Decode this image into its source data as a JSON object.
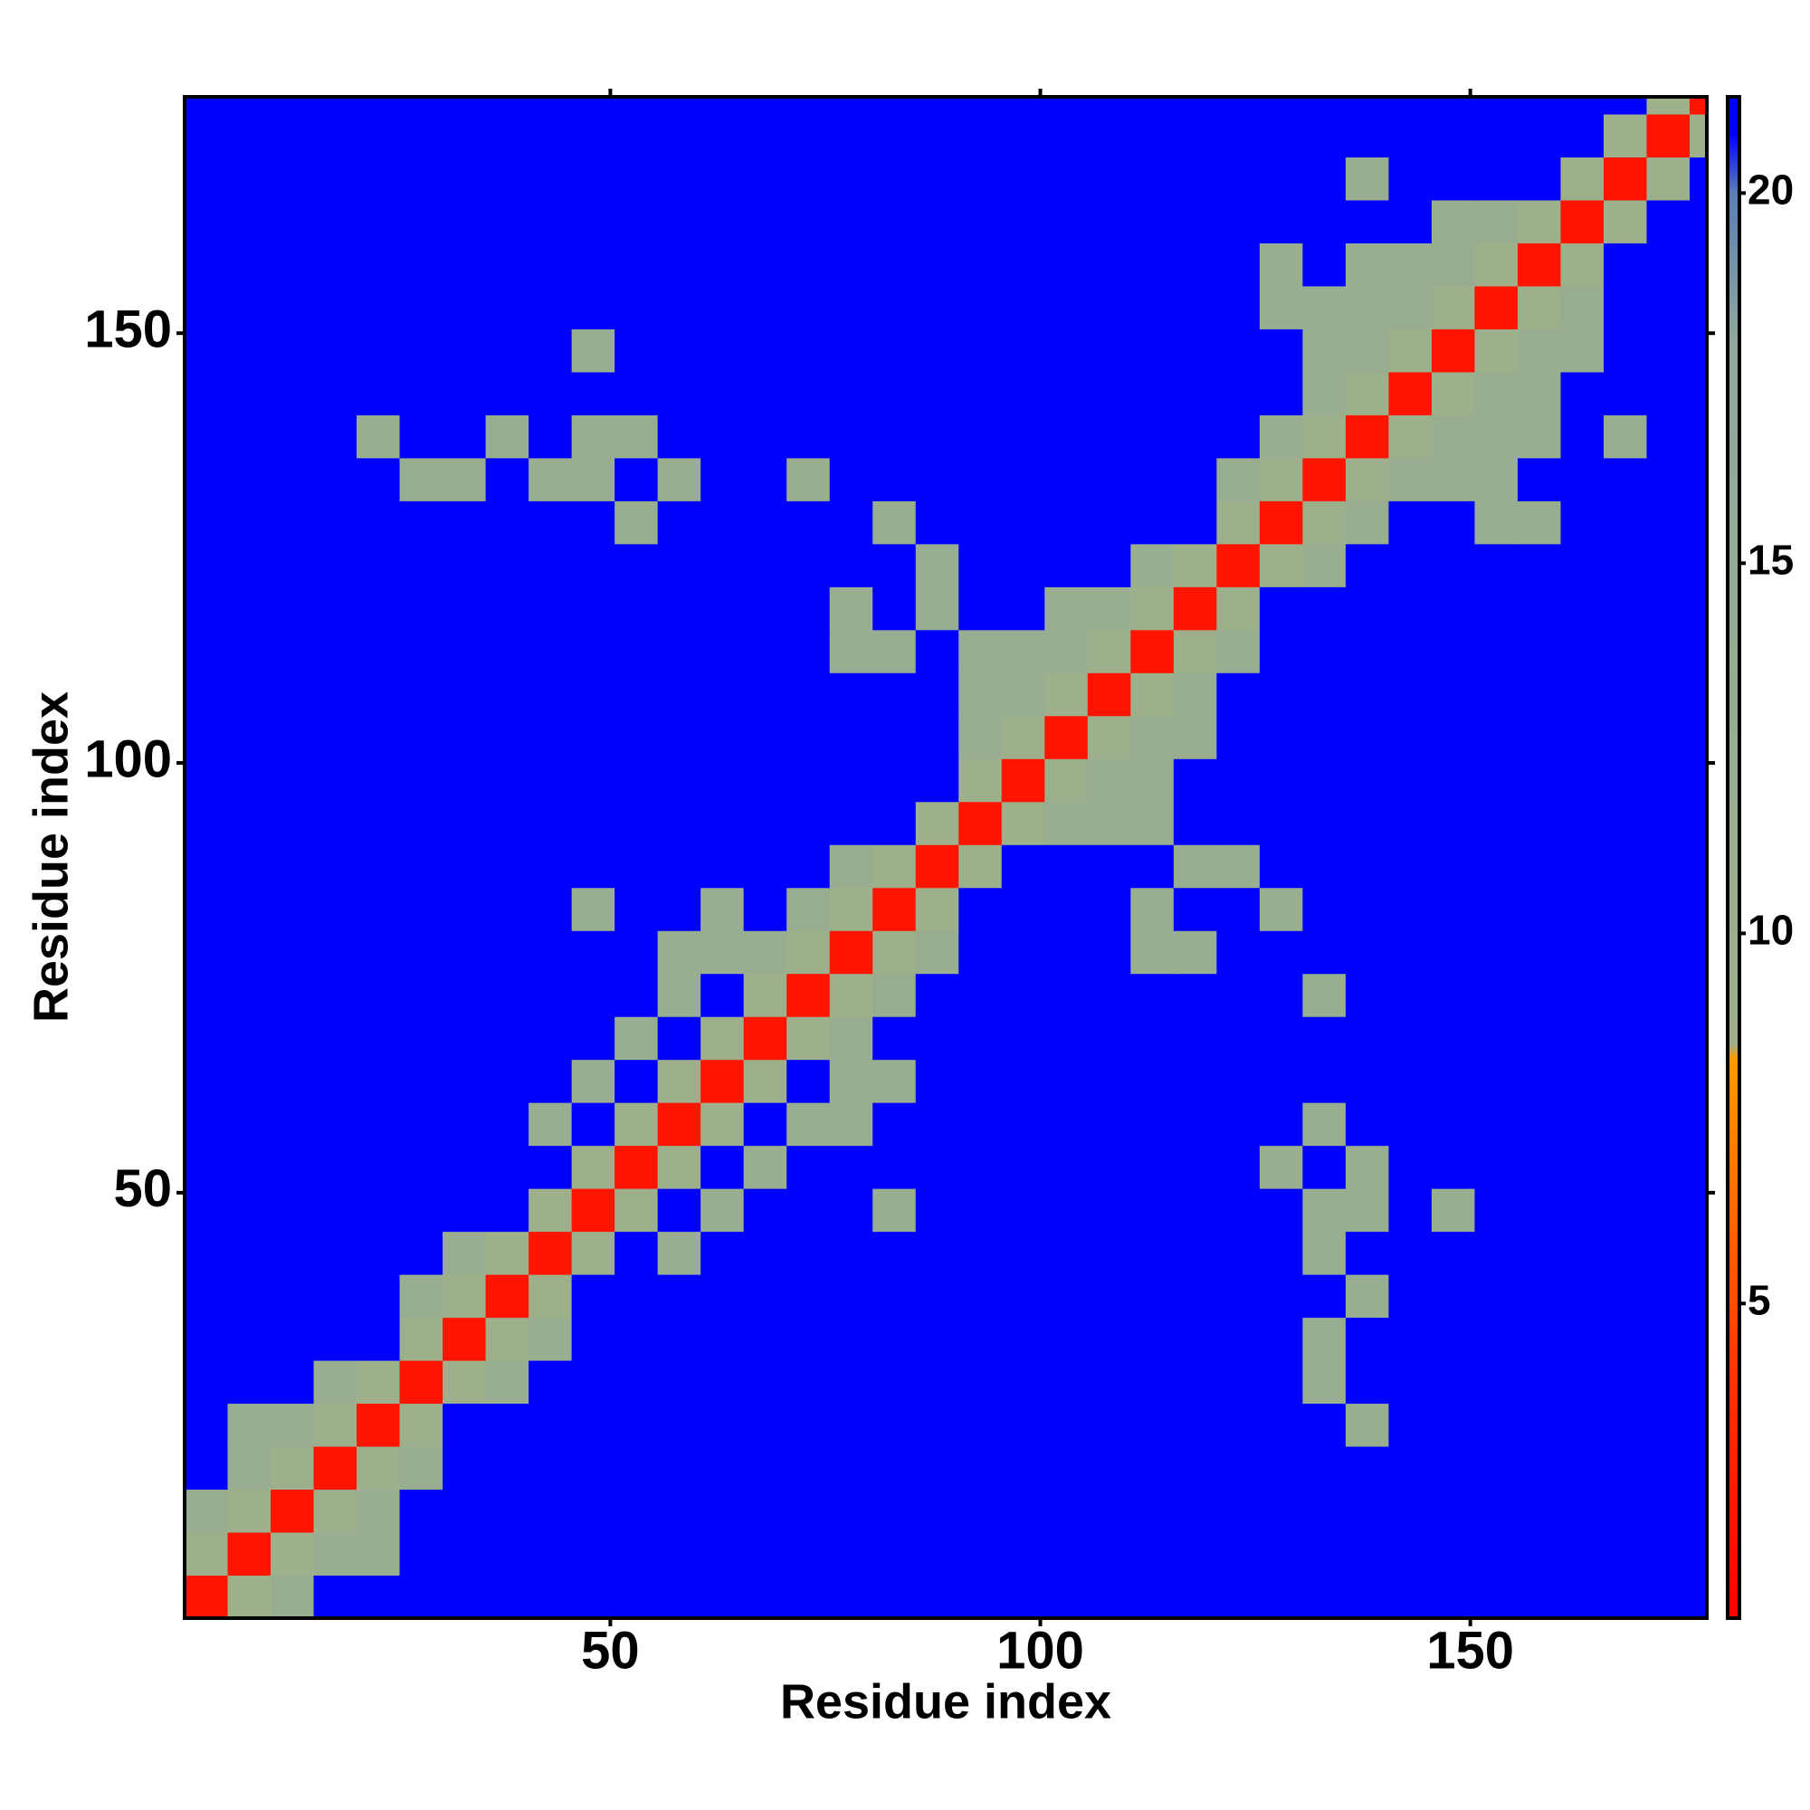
{
  "chart_data": {
    "type": "heatmap",
    "x_label": "Residue index",
    "y_label": "Residue index",
    "x": [
      3,
      8,
      13,
      18,
      23,
      28,
      33,
      38,
      43,
      48,
      53,
      58,
      63,
      68,
      73,
      78,
      83,
      88,
      93,
      98,
      103,
      108,
      113,
      118,
      123,
      128,
      133,
      138,
      143,
      148,
      153,
      158,
      163,
      168,
      173,
      178
    ],
    "y": [
      3,
      8,
      13,
      18,
      23,
      28,
      33,
      38,
      43,
      48,
      53,
      58,
      63,
      68,
      73,
      78,
      83,
      88,
      93,
      98,
      103,
      108,
      113,
      118,
      123,
      128,
      133,
      138,
      143,
      148,
      153,
      158,
      163,
      168,
      173,
      178
    ],
    "z": [
      [
        2,
        9,
        12,
        21,
        21,
        21,
        21,
        21,
        21,
        21,
        21,
        21,
        21,
        21,
        21,
        21,
        21,
        21,
        21,
        21,
        21,
        21,
        21,
        21,
        21,
        21,
        21,
        21,
        21,
        21,
        21,
        21,
        21,
        21,
        21,
        21
      ],
      [
        9,
        2,
        9,
        12,
        12,
        21,
        21,
        21,
        21,
        21,
        21,
        21,
        21,
        21,
        21,
        21,
        21,
        21,
        21,
        21,
        21,
        21,
        21,
        21,
        21,
        21,
        21,
        21,
        21,
        21,
        21,
        21,
        21,
        21,
        21,
        21
      ],
      [
        12,
        9,
        2,
        9,
        12,
        21,
        21,
        21,
        21,
        21,
        21,
        21,
        21,
        21,
        21,
        21,
        21,
        21,
        21,
        21,
        21,
        21,
        21,
        21,
        21,
        21,
        21,
        21,
        21,
        21,
        21,
        21,
        21,
        21,
        21,
        21
      ],
      [
        21,
        12,
        9,
        2,
        9,
        12,
        21,
        21,
        21,
        21,
        21,
        21,
        21,
        21,
        21,
        21,
        21,
        21,
        21,
        21,
        21,
        21,
        21,
        21,
        21,
        21,
        21,
        21,
        21,
        21,
        21,
        21,
        21,
        21,
        21,
        21
      ],
      [
        21,
        12,
        12,
        9,
        2,
        9,
        21,
        21,
        21,
        21,
        21,
        21,
        21,
        21,
        21,
        21,
        21,
        21,
        21,
        21,
        21,
        21,
        21,
        21,
        21,
        21,
        21,
        12,
        21,
        21,
        21,
        21,
        21,
        21,
        21,
        21
      ],
      [
        21,
        21,
        21,
        12,
        9,
        2,
        9,
        12,
        21,
        21,
        21,
        21,
        21,
        21,
        21,
        21,
        21,
        21,
        21,
        21,
        21,
        21,
        21,
        21,
        21,
        21,
        12,
        21,
        21,
        21,
        21,
        21,
        21,
        21,
        21,
        21
      ],
      [
        21,
        21,
        21,
        21,
        21,
        9,
        2,
        9,
        12,
        21,
        21,
        21,
        21,
        21,
        21,
        21,
        21,
        21,
        21,
        21,
        21,
        21,
        21,
        21,
        21,
        21,
        12,
        21,
        21,
        21,
        21,
        21,
        21,
        21,
        21,
        21
      ],
      [
        21,
        21,
        21,
        21,
        21,
        12,
        9,
        2,
        9,
        21,
        21,
        21,
        21,
        21,
        21,
        21,
        21,
        21,
        21,
        21,
        21,
        21,
        21,
        21,
        21,
        21,
        21,
        12,
        21,
        21,
        21,
        21,
        21,
        21,
        21,
        21
      ],
      [
        21,
        21,
        21,
        21,
        21,
        21,
        12,
        9,
        2,
        9,
        21,
        12,
        21,
        21,
        21,
        21,
        21,
        21,
        21,
        21,
        21,
        21,
        21,
        21,
        21,
        21,
        12,
        21,
        21,
        21,
        21,
        21,
        21,
        21,
        21,
        21
      ],
      [
        21,
        21,
        21,
        21,
        21,
        21,
        21,
        21,
        9,
        2,
        9,
        21,
        12,
        21,
        21,
        21,
        12,
        21,
        21,
        21,
        21,
        21,
        21,
        21,
        21,
        21,
        12,
        12,
        21,
        12,
        21,
        21,
        21,
        21,
        21,
        21
      ],
      [
        21,
        21,
        21,
        21,
        21,
        21,
        21,
        21,
        21,
        9,
        2,
        9,
        21,
        12,
        21,
        21,
        21,
        21,
        21,
        21,
        21,
        21,
        21,
        21,
        21,
        12,
        21,
        12,
        21,
        21,
        21,
        21,
        21,
        21,
        21,
        21
      ],
      [
        21,
        21,
        21,
        21,
        21,
        21,
        21,
        21,
        12,
        21,
        9,
        2,
        9,
        21,
        12,
        12,
        21,
        21,
        21,
        21,
        21,
        21,
        21,
        21,
        21,
        21,
        12,
        21,
        21,
        21,
        21,
        21,
        21,
        21,
        21,
        21
      ],
      [
        21,
        21,
        21,
        21,
        21,
        21,
        21,
        21,
        21,
        12,
        21,
        9,
        2,
        9,
        21,
        12,
        12,
        21,
        21,
        21,
        21,
        21,
        21,
        21,
        21,
        21,
        21,
        21,
        21,
        21,
        21,
        21,
        21,
        21,
        21,
        21
      ],
      [
        21,
        21,
        21,
        21,
        21,
        21,
        21,
        21,
        21,
        21,
        12,
        21,
        9,
        2,
        9,
        12,
        21,
        21,
        21,
        21,
        21,
        21,
        21,
        21,
        21,
        21,
        21,
        21,
        21,
        21,
        21,
        21,
        21,
        21,
        21,
        21
      ],
      [
        21,
        21,
        21,
        21,
        21,
        21,
        21,
        21,
        21,
        21,
        21,
        12,
        21,
        9,
        2,
        9,
        12,
        21,
        21,
        21,
        21,
        21,
        21,
        21,
        21,
        21,
        12,
        21,
        21,
        21,
        21,
        21,
        21,
        21,
        21,
        21
      ],
      [
        21,
        21,
        21,
        21,
        21,
        21,
        21,
        21,
        21,
        21,
        21,
        12,
        12,
        12,
        9,
        2,
        9,
        12,
        21,
        21,
        21,
        21,
        12,
        12,
        21,
        21,
        21,
        21,
        21,
        21,
        21,
        21,
        21,
        21,
        21,
        21
      ],
      [
        21,
        21,
        21,
        21,
        21,
        21,
        21,
        21,
        21,
        12,
        21,
        21,
        12,
        21,
        12,
        9,
        2,
        9,
        21,
        21,
        21,
        21,
        12,
        21,
        21,
        12,
        21,
        21,
        21,
        21,
        21,
        21,
        21,
        21,
        21,
        21
      ],
      [
        21,
        21,
        21,
        21,
        21,
        21,
        21,
        21,
        21,
        21,
        21,
        21,
        21,
        21,
        21,
        12,
        9,
        2,
        9,
        21,
        21,
        21,
        21,
        12,
        12,
        21,
        21,
        21,
        21,
        21,
        21,
        21,
        21,
        21,
        21,
        21
      ],
      [
        21,
        21,
        21,
        21,
        21,
        21,
        21,
        21,
        21,
        21,
        21,
        21,
        21,
        21,
        21,
        21,
        21,
        9,
        2,
        9,
        12,
        12,
        12,
        21,
        21,
        21,
        21,
        21,
        21,
        21,
        21,
        21,
        21,
        21,
        21,
        21
      ],
      [
        21,
        21,
        21,
        21,
        21,
        21,
        21,
        21,
        21,
        21,
        21,
        21,
        21,
        21,
        21,
        21,
        21,
        21,
        9,
        2,
        9,
        12,
        12,
        21,
        21,
        21,
        21,
        21,
        21,
        21,
        21,
        21,
        21,
        21,
        21,
        21
      ],
      [
        21,
        21,
        21,
        21,
        21,
        21,
        21,
        21,
        21,
        21,
        21,
        21,
        21,
        21,
        21,
        21,
        21,
        21,
        12,
        9,
        2,
        9,
        12,
        12,
        21,
        21,
        21,
        21,
        21,
        21,
        21,
        21,
        21,
        21,
        21,
        21
      ],
      [
        21,
        21,
        21,
        21,
        21,
        21,
        21,
        21,
        21,
        21,
        21,
        21,
        21,
        21,
        21,
        21,
        21,
        21,
        12,
        12,
        9,
        2,
        9,
        12,
        21,
        21,
        21,
        21,
        21,
        21,
        21,
        21,
        21,
        21,
        21,
        21
      ],
      [
        21,
        21,
        21,
        21,
        21,
        21,
        21,
        21,
        21,
        21,
        21,
        21,
        21,
        21,
        21,
        12,
        12,
        21,
        12,
        12,
        12,
        9,
        2,
        9,
        12,
        21,
        21,
        21,
        21,
        21,
        21,
        21,
        21,
        21,
        21,
        21
      ],
      [
        21,
        21,
        21,
        21,
        21,
        21,
        21,
        21,
        21,
        21,
        21,
        21,
        21,
        21,
        21,
        12,
        21,
        12,
        21,
        21,
        12,
        12,
        9,
        2,
        9,
        21,
        21,
        21,
        21,
        21,
        21,
        21,
        21,
        21,
        21,
        21
      ],
      [
        21,
        21,
        21,
        21,
        21,
        21,
        21,
        21,
        21,
        21,
        21,
        21,
        21,
        21,
        21,
        21,
        21,
        12,
        21,
        21,
        21,
        21,
        12,
        9,
        2,
        9,
        12,
        21,
        21,
        21,
        21,
        21,
        21,
        21,
        21,
        21
      ],
      [
        21,
        21,
        21,
        21,
        21,
        21,
        21,
        21,
        21,
        21,
        12,
        21,
        21,
        21,
        21,
        21,
        12,
        21,
        21,
        21,
        21,
        21,
        21,
        21,
        9,
        2,
        9,
        12,
        21,
        21,
        12,
        12,
        21,
        21,
        21,
        21
      ],
      [
        21,
        21,
        21,
        21,
        21,
        12,
        12,
        21,
        12,
        12,
        21,
        12,
        21,
        21,
        12,
        21,
        21,
        21,
        21,
        21,
        21,
        21,
        21,
        21,
        12,
        9,
        2,
        9,
        12,
        12,
        12,
        21,
        21,
        21,
        21,
        21
      ],
      [
        21,
        21,
        21,
        21,
        12,
        21,
        21,
        12,
        21,
        12,
        12,
        21,
        21,
        21,
        21,
        21,
        21,
        21,
        21,
        21,
        21,
        21,
        21,
        21,
        21,
        12,
        9,
        2,
        9,
        12,
        12,
        12,
        21,
        12,
        21,
        21
      ],
      [
        21,
        21,
        21,
        21,
        21,
        21,
        21,
        21,
        21,
        21,
        21,
        21,
        21,
        21,
        21,
        21,
        21,
        21,
        21,
        21,
        21,
        21,
        21,
        21,
        21,
        21,
        12,
        9,
        2,
        9,
        12,
        12,
        21,
        21,
        21,
        21
      ],
      [
        21,
        21,
        21,
        21,
        21,
        21,
        21,
        21,
        21,
        12,
        21,
        21,
        21,
        21,
        21,
        21,
        21,
        21,
        21,
        21,
        21,
        21,
        21,
        21,
        21,
        21,
        12,
        12,
        9,
        2,
        9,
        12,
        12,
        21,
        21,
        21
      ],
      [
        21,
        21,
        21,
        21,
        21,
        21,
        21,
        21,
        21,
        21,
        21,
        21,
        21,
        21,
        21,
        21,
        21,
        21,
        21,
        21,
        21,
        21,
        21,
        21,
        21,
        12,
        12,
        12,
        12,
        9,
        2,
        9,
        12,
        21,
        21,
        21
      ],
      [
        21,
        21,
        21,
        21,
        21,
        21,
        21,
        21,
        21,
        21,
        21,
        21,
        21,
        21,
        21,
        21,
        21,
        21,
        21,
        21,
        21,
        21,
        21,
        21,
        21,
        12,
        21,
        12,
        12,
        12,
        9,
        2,
        9,
        21,
        21,
        21
      ],
      [
        21,
        21,
        21,
        21,
        21,
        21,
        21,
        21,
        21,
        21,
        21,
        21,
        21,
        21,
        21,
        21,
        21,
        21,
        21,
        21,
        21,
        21,
        21,
        21,
        21,
        21,
        21,
        21,
        21,
        12,
        12,
        9,
        2,
        9,
        21,
        21
      ],
      [
        21,
        21,
        21,
        21,
        21,
        21,
        21,
        21,
        21,
        21,
        21,
        21,
        21,
        21,
        21,
        21,
        21,
        21,
        21,
        21,
        21,
        21,
        21,
        21,
        21,
        21,
        21,
        12,
        21,
        21,
        21,
        21,
        9,
        2,
        9,
        21
      ],
      [
        21,
        21,
        21,
        21,
        21,
        21,
        21,
        21,
        21,
        21,
        21,
        21,
        21,
        21,
        21,
        21,
        21,
        21,
        21,
        21,
        21,
        21,
        21,
        21,
        21,
        21,
        21,
        21,
        21,
        21,
        21,
        21,
        21,
        9,
        2,
        9
      ],
      [
        21,
        21,
        21,
        21,
        21,
        21,
        21,
        21,
        21,
        21,
        21,
        21,
        21,
        21,
        21,
        21,
        21,
        21,
        21,
        21,
        21,
        21,
        21,
        21,
        21,
        21,
        21,
        21,
        21,
        21,
        21,
        21,
        21,
        21,
        9,
        2
      ]
    ],
    "cell_size": 5,
    "xlim": [
      0.5,
      177.5
    ],
    "ylim": [
      0.5,
      177.5
    ],
    "xticks": [
      50,
      100,
      150
    ],
    "yticks": [
      50,
      100,
      150
    ],
    "zlim": [
      0.75,
      21.3
    ],
    "zticks": [
      5,
      10,
      15,
      20
    ],
    "colorscale": [
      [
        0.75,
        "#ff0000"
      ],
      [
        4,
        "#ff3300"
      ],
      [
        8.3,
        "#ff9900"
      ],
      [
        8.5,
        "#9fb08a"
      ],
      [
        18,
        "#8fa89c"
      ],
      [
        20,
        "#5a7fb5"
      ],
      [
        20.8,
        "#0000ff"
      ],
      [
        21.3,
        "#0000ff"
      ]
    ]
  }
}
